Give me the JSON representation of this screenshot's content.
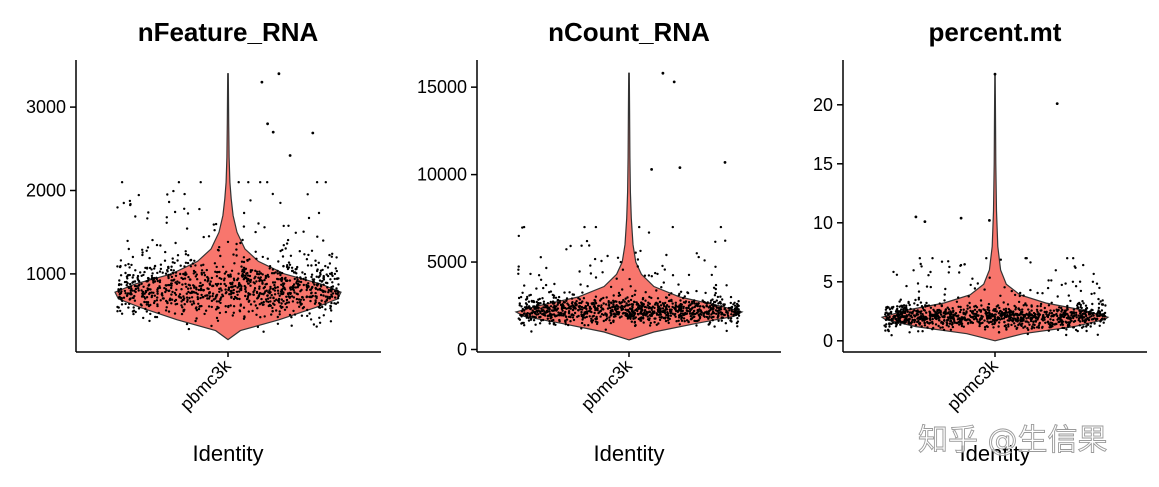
{
  "watermark": "知乎 @生信果",
  "colors": {
    "violin_fill": "#F8766D",
    "violin_edge": "#333333",
    "points": "#000000",
    "axis": "#000000"
  },
  "chart_data": [
    {
      "type": "violin",
      "title": "nFeature_RNA",
      "xlabel": "Identity",
      "ylabel": "",
      "categories": [
        "pbmc3k"
      ],
      "ylim": [
        200,
        3420
      ],
      "yticks": [
        1000,
        2000,
        3000
      ],
      "ytick_labels": [
        "1000",
        "2000",
        "3000"
      ],
      "grid": false,
      "legend": "none",
      "n_points": 2700,
      "summary": {
        "median": 820,
        "min": 212,
        "max": 3400
      },
      "outliers": [
        3300,
        3400,
        2800,
        2700,
        2690,
        2420
      ]
    },
    {
      "type": "violin",
      "title": "nCount_RNA",
      "xlabel": "Identity",
      "ylabel": "",
      "categories": [
        "pbmc3k"
      ],
      "ylim": [
        0,
        15800
      ],
      "yticks": [
        0,
        5000,
        10000,
        15000
      ],
      "ytick_labels": [
        "0",
        "5000",
        "10000",
        "15000"
      ],
      "grid": false,
      "legend": "none",
      "n_points": 2700,
      "summary": {
        "median": 2200,
        "min": 550,
        "max": 15800
      },
      "outliers": [
        15800,
        15300,
        10700,
        10400,
        10300
      ]
    },
    {
      "type": "violin",
      "title": "percent.mt",
      "xlabel": "Identity",
      "ylabel": "",
      "categories": [
        "pbmc3k"
      ],
      "ylim": [
        0,
        22.6
      ],
      "yticks": [
        0,
        5,
        10,
        15,
        20
      ],
      "ytick_labels": [
        "0",
        "5",
        "10",
        "15",
        "20"
      ],
      "grid": false,
      "legend": "none",
      "n_points": 2700,
      "summary": {
        "median": 2.0,
        "min": 0,
        "max": 22.6
      },
      "outliers": [
        22.6,
        20.1,
        10.5,
        10.4,
        10.2,
        10.1
      ]
    }
  ]
}
